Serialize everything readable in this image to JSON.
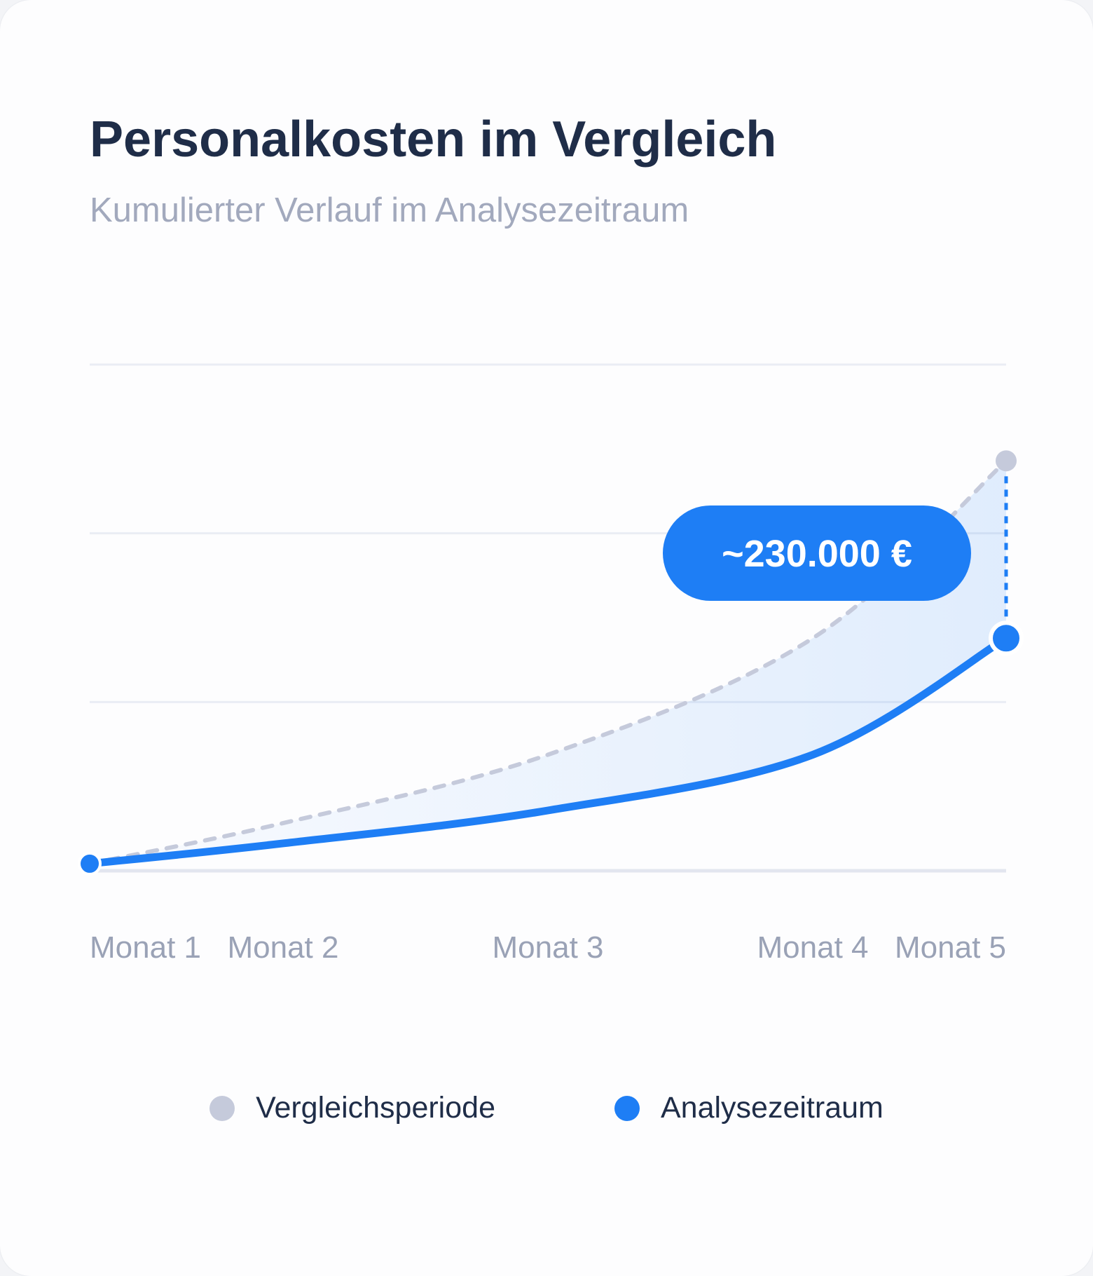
{
  "header": {
    "title": "Personalkosten im Vergleich",
    "subtitle": "Kumulierter Verlauf im Analysezeitraum"
  },
  "chart_data": {
    "type": "line",
    "title": "Personalkosten im Vergleich",
    "subtitle": "Kumulierter Verlauf im Analysezeitraum",
    "xlabel": "",
    "ylabel": "",
    "categories": [
      "Monat 1",
      "Monat 2",
      "Monat 3",
      "Monat 4",
      "Monat 5"
    ],
    "x": [
      1,
      1.73,
      2.73,
      3.73,
      4.46
    ],
    "series": [
      {
        "name": "Vergleichsperiode",
        "color": "#c5cadb",
        "style": "dashed",
        "values": [
          0.5,
          8.5,
          22,
          45,
          80
        ]
      },
      {
        "name": "Analysezeitraum",
        "color": "#1e7ef5",
        "style": "solid",
        "values": [
          0.5,
          4.5,
          11,
          22,
          45
        ]
      }
    ],
    "ylim": [
      -0.9,
      99
    ],
    "grid": true,
    "y_tick_labels_shown": false,
    "legend_position": "bottom-center",
    "annotation": {
      "text": "~230.000 €",
      "refers_to": "gap between series at last point",
      "color": "#1e7ef5"
    }
  }
}
